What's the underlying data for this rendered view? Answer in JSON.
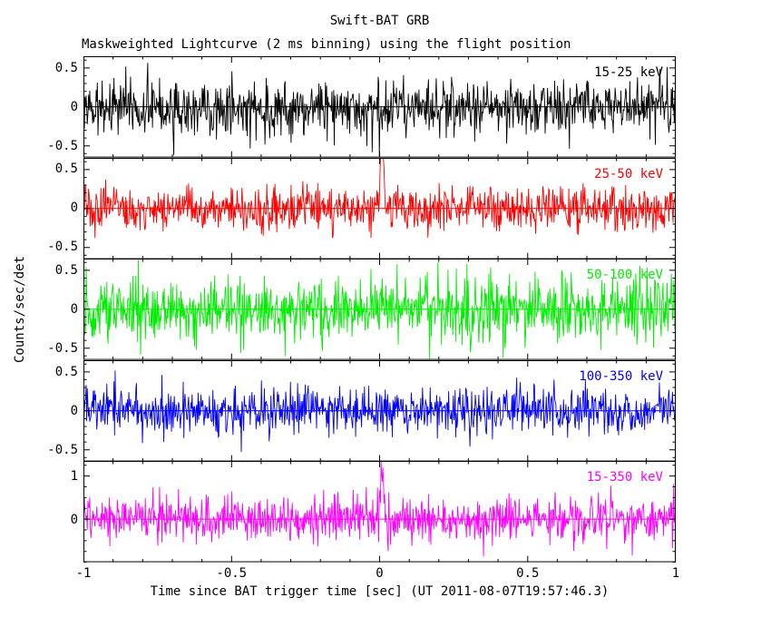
{
  "title": "Swift-BAT GRB",
  "subtitle": "Maskweighted Lightcurve (2 ms binning) using the flight position",
  "xlabel": "Time since BAT trigger time [sec] (UT 2011-08-07T19:57:46.3)",
  "ylabel": "Counts/sec/det",
  "x_axis": {
    "min": -1,
    "max": 1,
    "major_ticks": [
      -1,
      -0.5,
      0,
      0.5,
      1
    ],
    "major_tick_labels": [
      "-1",
      "-0.5",
      "0",
      "0.5",
      "1"
    ],
    "minor_step": 0.1
  },
  "chart_data": {
    "type": "line",
    "title": "Swift-BAT GRB",
    "subtitle": "Maskweighted Lightcurve (2 ms binning) using the flight position",
    "xlabel": "Time since BAT trigger time [sec] (UT 2011-08-07T19:57:46.3)",
    "ylabel": "Counts/sec/det",
    "x_range": [
      -1,
      1
    ],
    "bin_seconds": 0.002,
    "n_points": 1000,
    "grid": false,
    "legend_position": "inside-top-right-per-panel",
    "signal_description": "Five stacked panels of mask-weighted, background-subtracted count-rate noise centered on zero (counts/sec/det) vs time since trigger; a short spike near t=0 s is visible in the 25-50 keV and 15-350 keV bands (and weakly at 50-100 keV); other bands are consistent with noise.",
    "panels": [
      {
        "label": "15-25 keV",
        "color": "#000000",
        "ylim": [
          -0.65,
          0.65
        ],
        "yticks": [
          0.5,
          0,
          -0.5
        ],
        "ytick_labels": [
          "0.5",
          "0",
          "-0.5"
        ],
        "y_minor_step": 0.1,
        "noise_sigma": 0.18,
        "spike": {
          "t": 0.008,
          "amplitude": 0.0,
          "width": 0.004
        },
        "seed": 1101
      },
      {
        "label": "25-50 keV",
        "color": "#ff0000",
        "ylim": [
          -0.65,
          0.65
        ],
        "yticks": [
          0.5,
          0,
          -0.5
        ],
        "ytick_labels": [
          "0.5",
          "0",
          "-0.5"
        ],
        "y_minor_step": 0.1,
        "noise_sigma": 0.14,
        "spike": {
          "t": 0.008,
          "amplitude": 0.92,
          "width": 0.005
        },
        "seed": 2202
      },
      {
        "label": "50-100 keV",
        "color": "#00ee00",
        "ylim": [
          -0.65,
          0.65
        ],
        "yticks": [
          0.5,
          0,
          -0.5
        ],
        "ytick_labels": [
          "0.5",
          "0",
          "-0.5"
        ],
        "y_minor_step": 0.1,
        "noise_sigma": 0.21,
        "spike": {
          "t": 0.006,
          "amplitude": 0.28,
          "width": 0.005
        },
        "seed": 3303
      },
      {
        "label": "100-350 keV",
        "color": "#0000ff",
        "ylim": [
          -0.65,
          0.65
        ],
        "yticks": [
          0.5,
          0,
          -0.5
        ],
        "ytick_labels": [
          "0.5",
          "0",
          "-0.5"
        ],
        "y_minor_step": 0.1,
        "noise_sigma": 0.15,
        "spike": {
          "t": 0.008,
          "amplitude": 0.0,
          "width": 0.004
        },
        "seed": 4404
      },
      {
        "label": "15-350 keV",
        "color": "#ff00ff",
        "ylim": [
          -1.0,
          1.35
        ],
        "yticks": [
          1,
          0
        ],
        "ytick_labels": [
          "1",
          "0"
        ],
        "y_minor_step": 0.25,
        "noise_sigma": 0.27,
        "spike": {
          "t": 0.008,
          "amplitude": 1.28,
          "width": 0.005
        },
        "seed": 5505
      }
    ]
  }
}
